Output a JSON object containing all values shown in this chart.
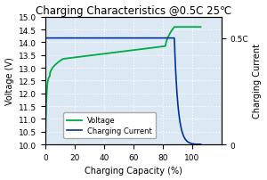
{
  "title": "Charging Characteristics @0.5C 25℃",
  "xlabel": "Charging Capacity (%)",
  "ylabel_left": "Voltage (V)",
  "ylabel_right": "Charging Current",
  "xlim": [
    0,
    120
  ],
  "ylim_left": [
    10.0,
    15.0
  ],
  "ylim_right": [
    0,
    0.6
  ],
  "right_yticks": [
    0,
    0.5
  ],
  "right_yticklabels": [
    "0",
    "0.5C"
  ],
  "bg_color": "#dce9f5",
  "voltage_color": "#00aa44",
  "current_color": "#003399",
  "grid_color": "#ffffff",
  "grid_linestyle": "dotted",
  "title_fontsize": 8.5,
  "label_fontsize": 7,
  "tick_fontsize": 6.5,
  "legend_fontsize": 6
}
